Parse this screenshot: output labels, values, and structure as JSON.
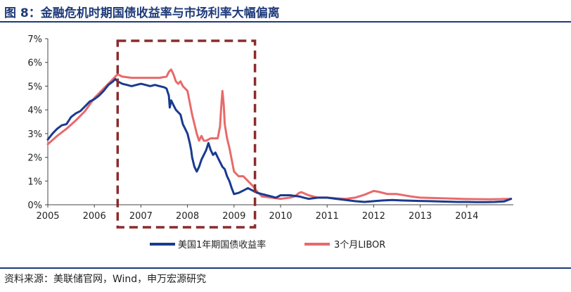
{
  "title": "图 8：金融危机时期国债收益率与市场利率大幅偏离",
  "source": "资料来源：美联储官网，Wind，申万宏源研究",
  "colors": {
    "title": "#1f3a7a",
    "treasury": "#1a3a8f",
    "libor": "#e86a6a",
    "highlight_box": "#8b2b2b"
  },
  "chart_data": {
    "type": "line",
    "ylim": [
      0,
      7
    ],
    "xlim": [
      2005,
      2015
    ],
    "yticks": [
      "0%",
      "1%",
      "2%",
      "3%",
      "4%",
      "5%",
      "6%",
      "7%"
    ],
    "xticks": [
      "2005",
      "2006",
      "2007",
      "2008",
      "2009",
      "2010",
      "2011",
      "2012",
      "2013",
      "2014"
    ],
    "legend_position": "bottom-center",
    "highlight_range": [
      2006.5,
      2009.45
    ],
    "series": [
      {
        "name": "美国1年期国债收益率",
        "x": [
          2005.0,
          2005.1,
          2005.2,
          2005.3,
          2005.4,
          2005.5,
          2005.6,
          2005.7,
          2005.8,
          2005.9,
          2006.0,
          2006.1,
          2006.2,
          2006.3,
          2006.4,
          2006.45,
          2006.5,
          2006.6,
          2006.7,
          2006.8,
          2006.9,
          2007.0,
          2007.1,
          2007.2,
          2007.3,
          2007.4,
          2007.5,
          2007.55,
          2007.6,
          2007.62,
          2007.65,
          2007.7,
          2007.75,
          2007.8,
          2007.85,
          2007.9,
          2007.95,
          2008.0,
          2008.05,
          2008.08,
          2008.1,
          2008.15,
          2008.2,
          2008.25,
          2008.3,
          2008.35,
          2008.4,
          2008.45,
          2008.5,
          2008.55,
          2008.6,
          2008.65,
          2008.7,
          2008.75,
          2008.8,
          2008.85,
          2008.9,
          2008.95,
          2009.0,
          2009.1,
          2009.2,
          2009.3,
          2009.4,
          2009.5,
          2009.6,
          2009.7,
          2009.8,
          2009.9,
          2010.0,
          2010.2,
          2010.4,
          2010.5,
          2010.6,
          2010.8,
          2011.0,
          2011.2,
          2011.4,
          2011.6,
          2011.8,
          2012.0,
          2012.2,
          2012.4,
          2012.6,
          2012.8,
          2013.0,
          2013.2,
          2013.4,
          2013.6,
          2013.8,
          2014.0,
          2014.2,
          2014.4,
          2014.6,
          2014.8,
          2014.95
        ],
        "values": [
          2.75,
          3.0,
          3.2,
          3.35,
          3.4,
          3.7,
          3.85,
          3.95,
          4.15,
          4.35,
          4.45,
          4.6,
          4.8,
          5.05,
          5.2,
          5.3,
          5.2,
          5.1,
          5.05,
          5.0,
          5.05,
          5.1,
          5.05,
          5.0,
          5.05,
          5.0,
          4.95,
          4.9,
          4.6,
          4.1,
          4.4,
          4.2,
          4.0,
          3.9,
          3.8,
          3.4,
          3.2,
          3.0,
          2.6,
          2.3,
          2.0,
          1.6,
          1.4,
          1.6,
          1.9,
          2.1,
          2.3,
          2.6,
          2.3,
          2.1,
          2.2,
          2.0,
          1.8,
          1.6,
          1.5,
          1.2,
          1.0,
          0.7,
          0.45,
          0.5,
          0.6,
          0.7,
          0.6,
          0.5,
          0.45,
          0.4,
          0.35,
          0.3,
          0.4,
          0.4,
          0.35,
          0.3,
          0.25,
          0.3,
          0.3,
          0.25,
          0.2,
          0.15,
          0.12,
          0.15,
          0.18,
          0.2,
          0.18,
          0.17,
          0.16,
          0.15,
          0.14,
          0.13,
          0.12,
          0.12,
          0.11,
          0.11,
          0.12,
          0.14,
          0.25
        ]
      },
      {
        "name": "3个月LIBOR",
        "x": [
          2005.0,
          2005.2,
          2005.4,
          2005.6,
          2005.8,
          2006.0,
          2006.2,
          2006.4,
          2006.5,
          2006.6,
          2006.8,
          2007.0,
          2007.2,
          2007.4,
          2007.55,
          2007.6,
          2007.65,
          2007.7,
          2007.75,
          2007.8,
          2007.85,
          2007.9,
          2008.0,
          2008.05,
          2008.1,
          2008.2,
          2008.25,
          2008.3,
          2008.35,
          2008.4,
          2008.5,
          2008.6,
          2008.65,
          2008.7,
          2008.72,
          2008.75,
          2008.78,
          2008.8,
          2008.85,
          2008.9,
          2008.95,
          2009.0,
          2009.1,
          2009.2,
          2009.3,
          2009.4,
          2009.5,
          2009.6,
          2009.8,
          2010.0,
          2010.2,
          2010.3,
          2010.4,
          2010.45,
          2010.6,
          2010.8,
          2011.0,
          2011.2,
          2011.4,
          2011.6,
          2011.8,
          2012.0,
          2012.1,
          2012.3,
          2012.5,
          2012.8,
          2013.0,
          2013.5,
          2014.0,
          2014.5,
          2014.95
        ],
        "values": [
          2.55,
          2.9,
          3.2,
          3.55,
          3.95,
          4.5,
          4.9,
          5.3,
          5.5,
          5.4,
          5.35,
          5.35,
          5.35,
          5.35,
          5.4,
          5.6,
          5.7,
          5.5,
          5.2,
          5.1,
          5.2,
          5.0,
          4.8,
          4.3,
          3.8,
          3.0,
          2.7,
          2.9,
          2.7,
          2.7,
          2.8,
          2.8,
          2.8,
          3.3,
          4.0,
          4.8,
          4.2,
          3.4,
          2.8,
          2.4,
          1.9,
          1.4,
          1.2,
          1.2,
          1.0,
          0.8,
          0.55,
          0.35,
          0.3,
          0.25,
          0.3,
          0.35,
          0.5,
          0.53,
          0.4,
          0.3,
          0.3,
          0.27,
          0.25,
          0.3,
          0.42,
          0.58,
          0.55,
          0.45,
          0.45,
          0.35,
          0.3,
          0.27,
          0.24,
          0.23,
          0.25
        ]
      }
    ]
  }
}
